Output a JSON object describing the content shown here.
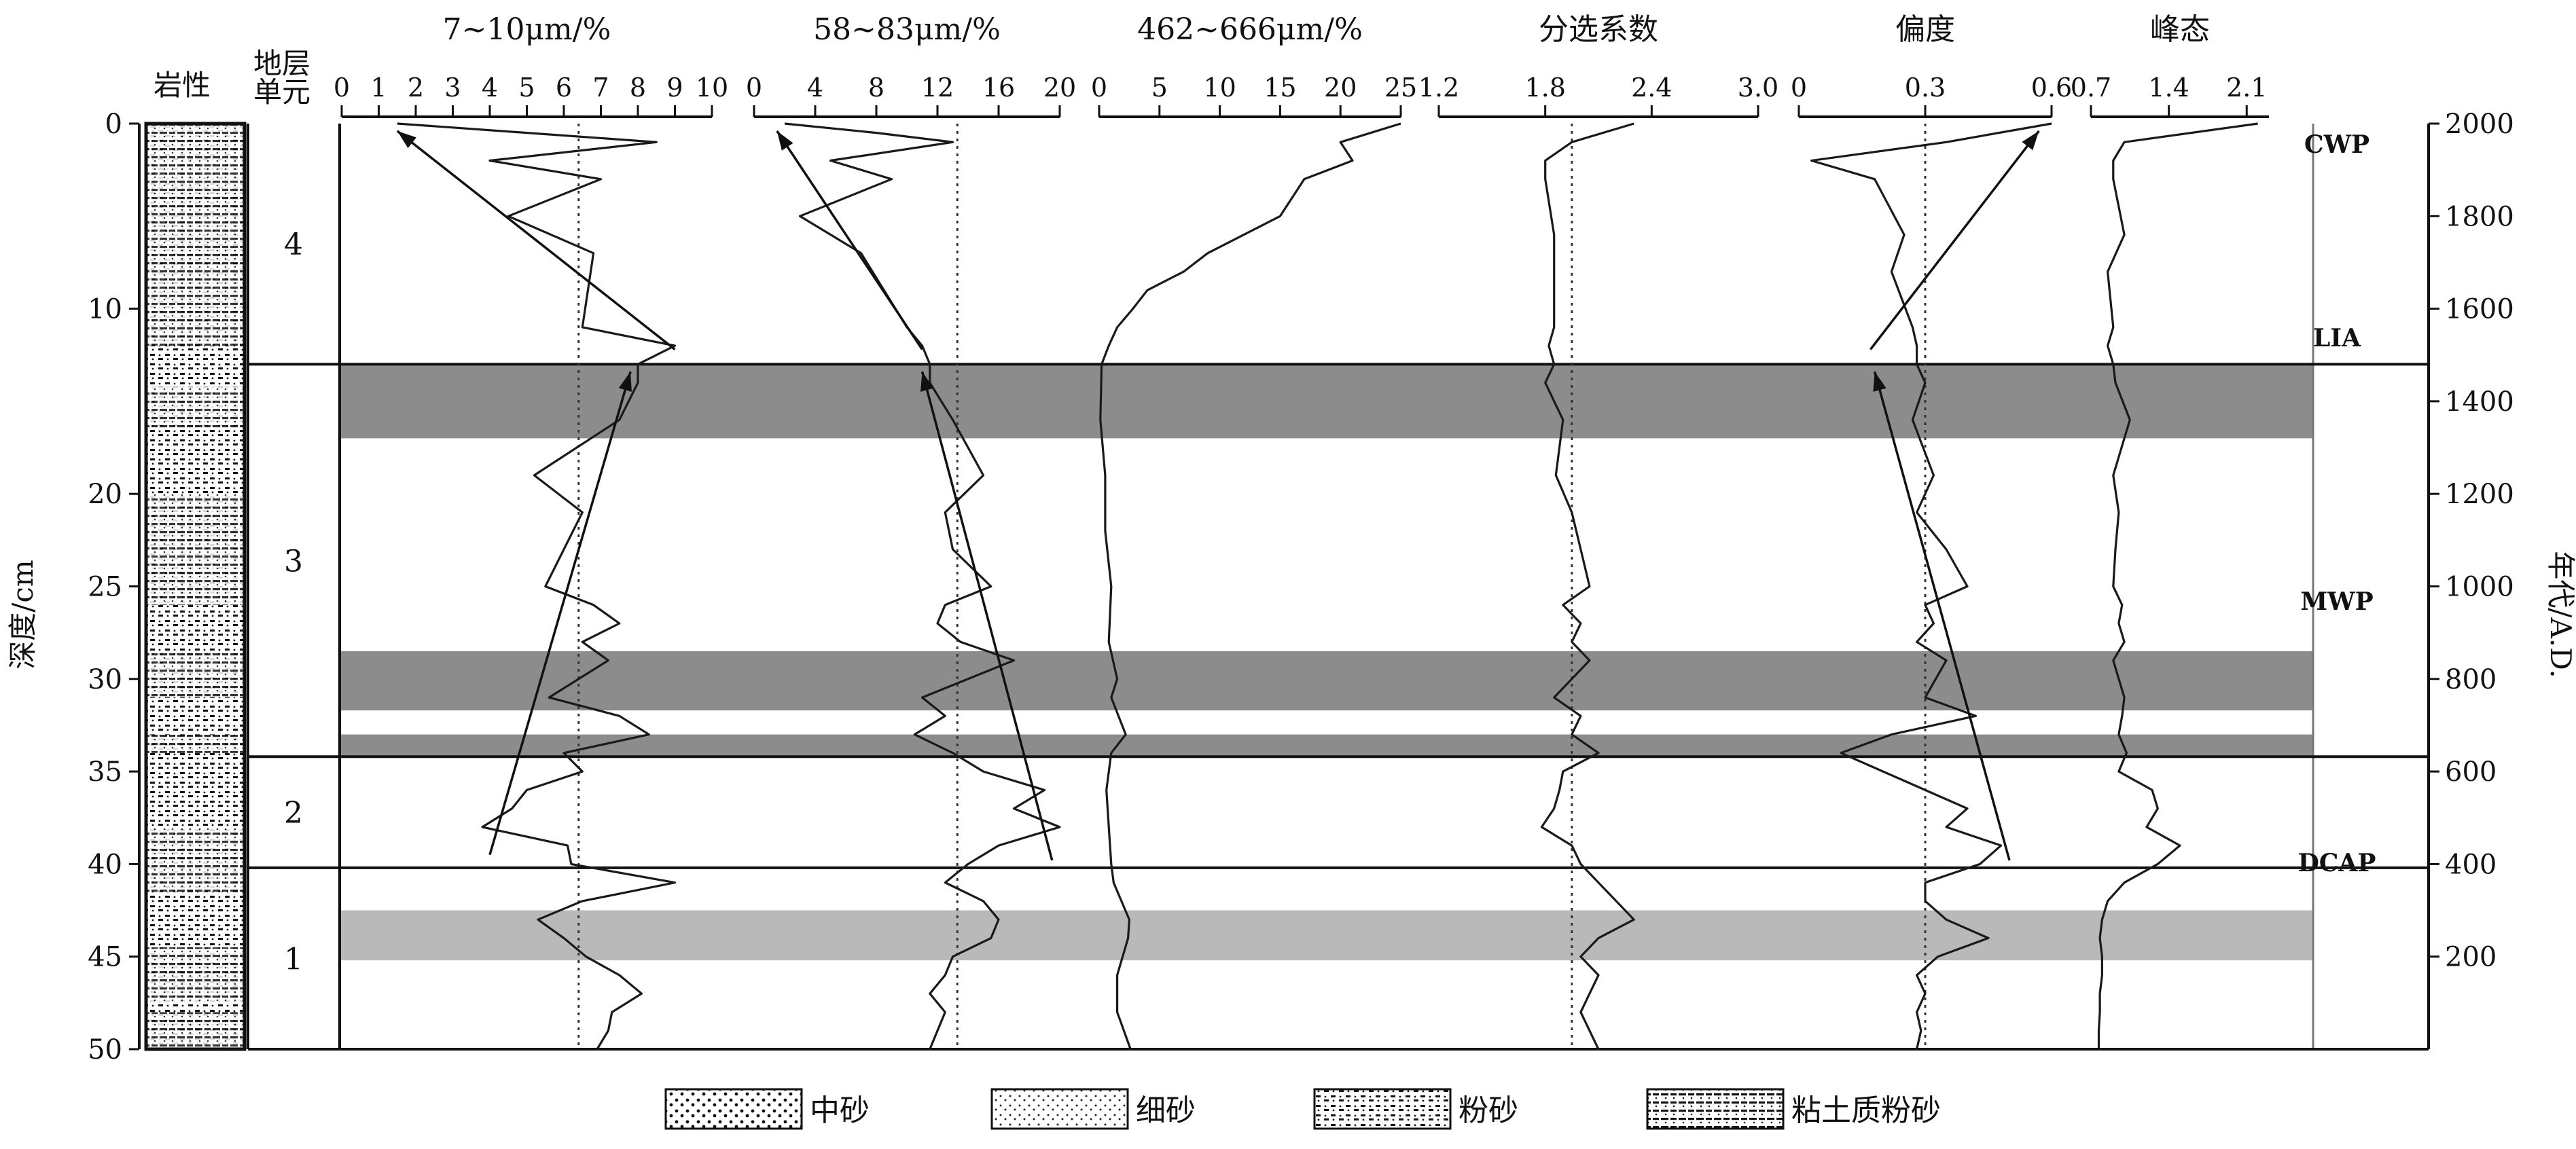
{
  "lithology_header": "岩性",
  "unit_header_1": "地层",
  "unit_header_2": "单元",
  "depth_label": "深度/cm",
  "age_label": "年代/A.D.",
  "depth_ticks": [
    "0",
    "10",
    "20",
    "25",
    "30",
    "35",
    "40",
    "45",
    "50"
  ],
  "age_ticks": [
    "2000",
    "1800",
    "1600",
    "1400",
    "1200",
    "1000",
    "800",
    "600",
    "400",
    "200"
  ],
  "units": [
    {
      "label": "4",
      "top": 0,
      "bottom": 13
    },
    {
      "label": "3",
      "top": 13,
      "bottom": 34.2
    },
    {
      "label": "2",
      "top": 34.2,
      "bottom": 40.2
    },
    {
      "label": "1",
      "top": 40.2,
      "bottom": 50
    }
  ],
  "periods": [
    "CWP",
    "LIA",
    "MWP",
    "DCAP"
  ],
  "legend": [
    "中砂",
    "细砂",
    "粉砂",
    "粘土质粉砂"
  ],
  "colors": {
    "dark_band": "#8c8c8c",
    "light_band": "#b9b9b9",
    "line": "#1a1a1a"
  },
  "chart_data": {
    "type": "line",
    "orientation": "vertical-profile",
    "y_axis": {
      "label": "深度/cm",
      "range": [
        0,
        50
      ],
      "inverted": true
    },
    "secondary_y_axis": {
      "label": "年代/A.D.",
      "range": [
        2000,
        0
      ]
    },
    "shaded_intervals": [
      {
        "from": 13,
        "to": 17,
        "shade": "dark"
      },
      {
        "from": 28.5,
        "to": 31.7,
        "shade": "dark"
      },
      {
        "from": 33,
        "to": 34.2,
        "shade": "dark"
      },
      {
        "from": 42.5,
        "to": 45.2,
        "shade": "light"
      }
    ],
    "panels": [
      {
        "title": "7~10μm/%",
        "ticks": [
          "0",
          "1",
          "2",
          "3",
          "4",
          "5",
          "6",
          "7",
          "8",
          "9",
          "10"
        ],
        "range": [
          0,
          10
        ],
        "reference": 6.4,
        "series": {
          "depth": [
            0,
            0.5,
            1,
            2,
            3,
            5,
            7,
            11,
            12,
            13,
            14,
            16,
            19,
            21,
            23,
            25,
            26,
            27,
            28,
            29,
            31,
            32,
            33,
            34,
            35,
            36,
            37,
            38,
            39,
            40,
            41,
            42,
            43,
            44,
            45,
            46,
            47,
            48,
            49,
            50
          ],
          "value": [
            1.5,
            5,
            8.5,
            4,
            7,
            4.5,
            6.8,
            6.5,
            9,
            8,
            8,
            7.5,
            5.2,
            6.5,
            6,
            5.5,
            6.8,
            7.5,
            6.5,
            7.2,
            5.6,
            7.5,
            8.3,
            6,
            6.5,
            5,
            4.6,
            3.8,
            6.1,
            6.2,
            9,
            6.5,
            5.3,
            6,
            6.6,
            7.5,
            8.1,
            7.3,
            7.2,
            6.9
          ]
        },
        "trends": [
          {
            "from": [
              1.5,
              0.4
            ],
            "to": [
              9,
              12.2
            ]
          },
          {
            "from": [
              7.8,
              13.4
            ],
            "to": [
              4,
              39.5
            ]
          }
        ]
      },
      {
        "title": "58~83μm/%",
        "ticks": [
          "0",
          "4",
          "8",
          "12",
          "16",
          "20"
        ],
        "range": [
          0,
          20
        ],
        "reference": 13.3,
        "series": {
          "depth": [
            0,
            0.5,
            1,
            2,
            3,
            5,
            7,
            11,
            12,
            13,
            14,
            16,
            19,
            21,
            23,
            25,
            26,
            27,
            28,
            29,
            31,
            32,
            33,
            34,
            35,
            36,
            37,
            38,
            39,
            40,
            41,
            42,
            43,
            44,
            45,
            46,
            47,
            48,
            49,
            50
          ],
          "value": [
            2,
            8,
            13,
            5,
            9,
            3,
            7,
            10,
            11,
            11.5,
            11.5,
            13,
            15,
            12.5,
            13,
            15.5,
            12.5,
            12,
            13.5,
            17,
            11,
            12.5,
            10.5,
            13,
            15,
            19,
            17,
            20,
            16,
            14,
            12.5,
            15,
            16,
            15.5,
            13,
            12.5,
            11.5,
            12.5,
            12,
            11.5
          ]
        },
        "trends": [
          {
            "from": [
              1.5,
              0.4
            ],
            "to": [
              11,
              12.2
            ]
          },
          {
            "from": [
              11,
              13.4
            ],
            "to": [
              19.5,
              39.8
            ]
          }
        ]
      },
      {
        "title": "462~666μm/%",
        "ticks": [
          "0",
          "5",
          "10",
          "15",
          "20",
          "25"
        ],
        "range": [
          0,
          25
        ],
        "reference": null,
        "series": {
          "depth": [
            0,
            1,
            2,
            3,
            4,
            5,
            6,
            7,
            8,
            9,
            10,
            11,
            12,
            13,
            16,
            19,
            22,
            25,
            28,
            30,
            31,
            33,
            34,
            36,
            38,
            40,
            41,
            43,
            44,
            46,
            48,
            50
          ],
          "value": [
            25,
            20,
            21,
            17,
            16,
            15,
            12,
            9,
            7,
            4,
            2.8,
            1.5,
            0.8,
            0.2,
            0.1,
            0.5,
            0.5,
            1,
            0.8,
            1.5,
            1,
            2.2,
            1,
            0.6,
            0.8,
            1,
            1.2,
            2.5,
            2.4,
            1.5,
            1.5,
            2.6
          ]
        },
        "trends": []
      },
      {
        "title": "分选系数",
        "ticks": [
          "1.2",
          "1.8",
          "2.4",
          "3.0"
        ],
        "range": [
          1.2,
          3.0
        ],
        "reference": 1.95,
        "series": {
          "depth": [
            0,
            1,
            2,
            3,
            6,
            11,
            12,
            13,
            14,
            16,
            19,
            21,
            23,
            25,
            26,
            27,
            28,
            29,
            31,
            32,
            33,
            34,
            35,
            36,
            37,
            38,
            39,
            40,
            41,
            42,
            43,
            44,
            45,
            46,
            47,
            48,
            49,
            50
          ],
          "value": [
            2.3,
            1.95,
            1.8,
            1.8,
            1.85,
            1.85,
            1.82,
            1.85,
            1.8,
            1.9,
            1.86,
            1.95,
            2.0,
            2.05,
            1.9,
            2.0,
            1.95,
            2.05,
            1.85,
            2.0,
            1.95,
            2.1,
            1.9,
            1.88,
            1.85,
            1.78,
            1.95,
            2.0,
            2.1,
            2.2,
            2.3,
            2.1,
            2.0,
            2.1,
            2.05,
            2.0,
            2.05,
            2.1
          ]
        },
        "trends": []
      },
      {
        "title": "偏度",
        "ticks": [
          "0",
          "0.3",
          "0.6"
        ],
        "range": [
          0,
          0.6
        ],
        "reference": 0.3,
        "series": {
          "depth": [
            0,
            1,
            2,
            3,
            6,
            8,
            11,
            12,
            13,
            14,
            16,
            19,
            21,
            23,
            25,
            26,
            27,
            28,
            29,
            31,
            32,
            33,
            34,
            35,
            36,
            37,
            38,
            39,
            40,
            41,
            42,
            43,
            44,
            45,
            46,
            47,
            48,
            49,
            50
          ],
          "value": [
            0.6,
            0.35,
            0.03,
            0.18,
            0.25,
            0.22,
            0.27,
            0.28,
            0.28,
            0.3,
            0.27,
            0.32,
            0.28,
            0.35,
            0.4,
            0.3,
            0.32,
            0.28,
            0.35,
            0.3,
            0.42,
            0.22,
            0.1,
            0.2,
            0.3,
            0.4,
            0.35,
            0.48,
            0.43,
            0.3,
            0.3,
            0.35,
            0.45,
            0.33,
            0.28,
            0.3,
            0.28,
            0.29,
            0.28
          ]
        },
        "trends": [
          {
            "from": [
              0.57,
              0.4
            ],
            "to": [
              0.17,
              12.2
            ]
          },
          {
            "from": [
              0.18,
              13.4
            ],
            "to": [
              0.5,
              39.8
            ]
          }
        ]
      },
      {
        "title": "峰态",
        "ticks": [
          "0.7",
          "1.4",
          "2.1"
        ],
        "range": [
          0.7,
          2.3
        ],
        "reference": null,
        "series": {
          "depth": [
            0,
            1,
            2,
            3,
            6,
            8,
            11,
            12,
            13,
            14,
            16,
            19,
            21,
            23,
            25,
            26,
            27,
            28,
            29,
            31,
            32,
            33,
            34,
            35,
            36,
            37,
            38,
            39,
            40,
            41,
            42,
            43,
            44,
            45,
            46,
            47,
            48,
            49,
            50
          ],
          "value": [
            2.2,
            1.0,
            0.9,
            0.9,
            1.0,
            0.85,
            0.9,
            0.85,
            0.9,
            0.92,
            1.05,
            0.9,
            0.95,
            0.92,
            0.9,
            0.98,
            0.95,
            1.0,
            0.9,
            1.0,
            0.98,
            0.95,
            1.02,
            0.95,
            1.25,
            1.3,
            1.2,
            1.5,
            1.3,
            1.0,
            0.85,
            0.8,
            0.78,
            0.8,
            0.8,
            0.78,
            0.78,
            0.77,
            0.77
          ]
        },
        "trends": []
      }
    ]
  }
}
